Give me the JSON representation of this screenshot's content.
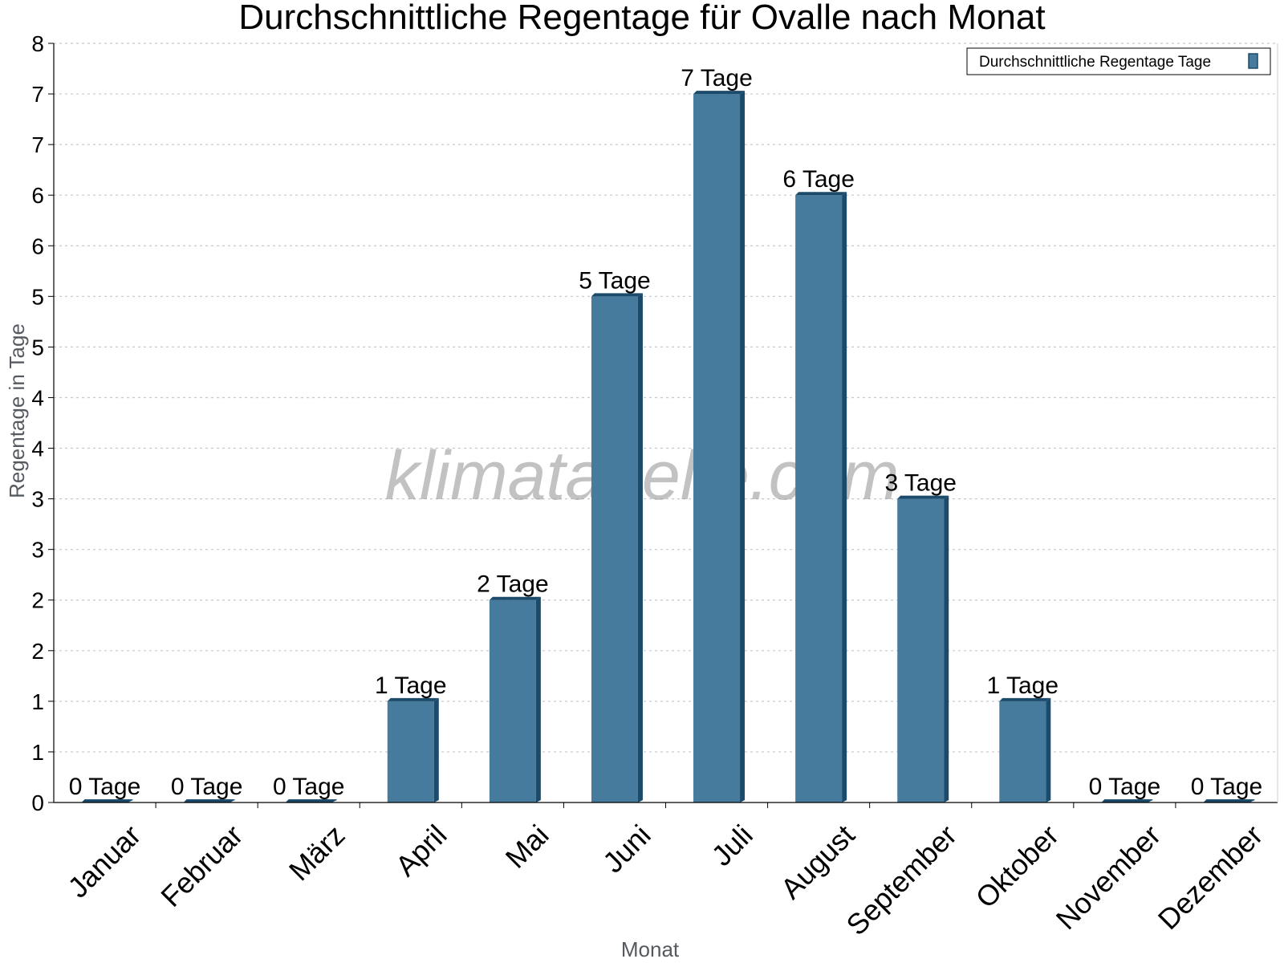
{
  "chart_data": {
    "type": "bar",
    "title": "Durchschnittliche Regentage für Ovalle nach Monat",
    "xlabel": "Monat",
    "ylabel": "Regentage in Tage",
    "categories": [
      "Januar",
      "Februar",
      "März",
      "April",
      "Mai",
      "Juni",
      "Juli",
      "August",
      "September",
      "Oktober",
      "November",
      "Dezember"
    ],
    "series": [
      {
        "name": "Durchschnittliche Regentage Tage",
        "values": [
          0,
          0,
          0,
          1,
          2,
          5,
          7,
          6,
          3,
          1,
          0,
          0
        ],
        "data_labels": [
          "0 Tage",
          "0 Tage",
          "0 Tage",
          "1 Tage",
          "2 Tage",
          "5 Tage",
          "7 Tage",
          "6 Tage",
          "3 Tage",
          "1 Tage",
          "0 Tage",
          "0 Tage"
        ]
      }
    ],
    "ylim": [
      0,
      7.5
    ],
    "yticks": [
      0,
      0.5,
      1,
      1.5,
      2,
      2.5,
      3,
      3.5,
      4,
      4.5,
      5,
      5.5,
      6,
      6.5,
      7,
      7.5
    ],
    "ytick_labels": [
      "0",
      "1",
      "1",
      "2",
      "2",
      "3",
      "3",
      "4",
      "4",
      "5",
      "5",
      "6",
      "6",
      "7",
      "7",
      "8"
    ],
    "grid": true,
    "legend_position": "top-right",
    "colors": {
      "bar": "#467b9d",
      "bar_side": "#1c4a6b",
      "grid": "#c8c8c8"
    }
  },
  "watermark": "klimatabelle.com"
}
